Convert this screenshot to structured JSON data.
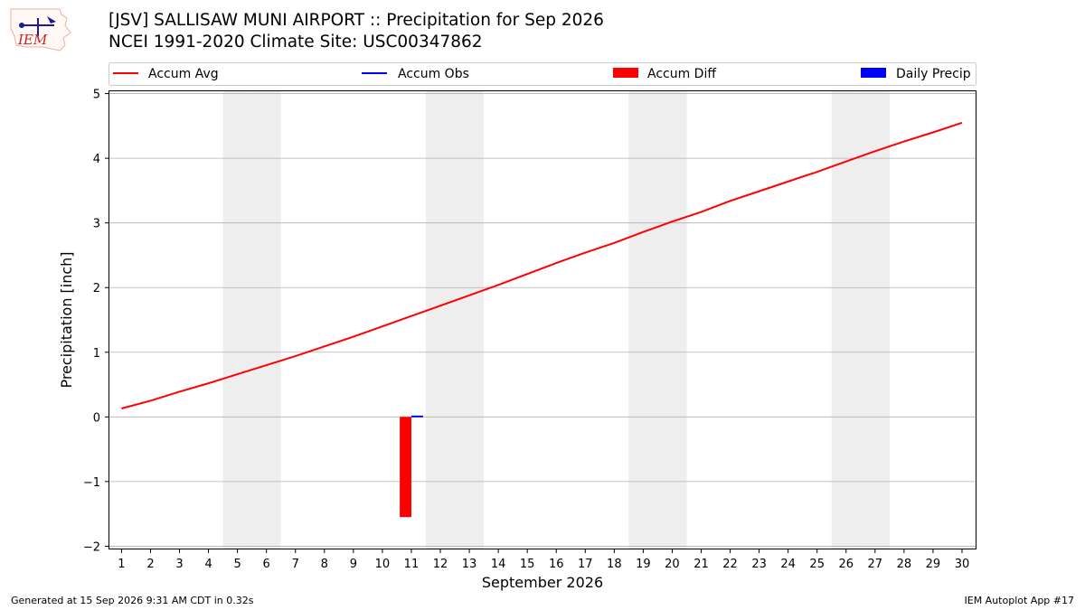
{
  "header": {
    "title": "[JSV] SALLISAW MUNI AIRPORT :: Precipitation for Sep 2026",
    "subtitle": "NCEI 1991-2020 Climate Site: USC00347862",
    "logo_text": "IEM"
  },
  "footer": {
    "generated": "Generated at 15 Sep 2026 9:31 AM CDT in 0.32s",
    "app": "IEM Autoplot App #17"
  },
  "colors": {
    "accum_avg": "#ff0000",
    "accum_obs": "#0000ff",
    "accum_diff": "#ff0000",
    "daily_precip": "#0000ff",
    "weekend_shade": "#eeeeee",
    "grid": "#b0b0b0"
  },
  "chart_data": {
    "type": "line",
    "xlabel": "September 2026",
    "ylabel": "Precipitation [inch]",
    "ylim": [
      -2.05,
      5.05
    ],
    "xlim": [
      0.55,
      30.5
    ],
    "yticks": [
      -2,
      -1,
      0,
      1,
      2,
      3,
      4,
      5
    ],
    "ytick_labels": [
      "−2",
      "−1",
      "0",
      "1",
      "2",
      "3",
      "4",
      "5"
    ],
    "xticks": [
      1,
      2,
      3,
      4,
      5,
      6,
      7,
      8,
      9,
      10,
      11,
      12,
      13,
      14,
      15,
      16,
      17,
      18,
      19,
      20,
      21,
      22,
      23,
      24,
      25,
      26,
      27,
      28,
      29,
      30
    ],
    "grid": "horizontal",
    "legend_position": "top",
    "legend": [
      "Accum Avg",
      "Accum Obs",
      "Accum Diff",
      "Daily Precip"
    ],
    "weekend_days": [
      5,
      6,
      12,
      13,
      19,
      20,
      26,
      27
    ],
    "x": [
      1,
      2,
      3,
      4,
      5,
      6,
      7,
      8,
      9,
      10,
      11,
      12,
      13,
      14,
      15,
      16,
      17,
      18,
      19,
      20,
      21,
      22,
      23,
      24,
      25,
      26,
      27,
      28,
      29,
      30
    ],
    "series": [
      {
        "name": "Accum Avg",
        "type": "line",
        "values": [
          0.13,
          0.25,
          0.39,
          0.52,
          0.66,
          0.8,
          0.94,
          1.09,
          1.24,
          1.4,
          1.56,
          1.72,
          1.88,
          2.04,
          2.21,
          2.38,
          2.54,
          2.69,
          2.86,
          3.02,
          3.17,
          3.34,
          3.49,
          3.64,
          3.79,
          3.95,
          4.11,
          4.26,
          4.4,
          4.55
        ]
      },
      {
        "name": "Accum Obs",
        "type": "line",
        "x": [
          11
        ],
        "values": [
          0.01
        ]
      },
      {
        "name": "Accum Diff",
        "type": "bar",
        "x": [
          11
        ],
        "values": [
          -1.55
        ]
      },
      {
        "name": "Daily Precip",
        "type": "bar",
        "x": [
          11
        ],
        "values": [
          0.01
        ]
      }
    ]
  }
}
